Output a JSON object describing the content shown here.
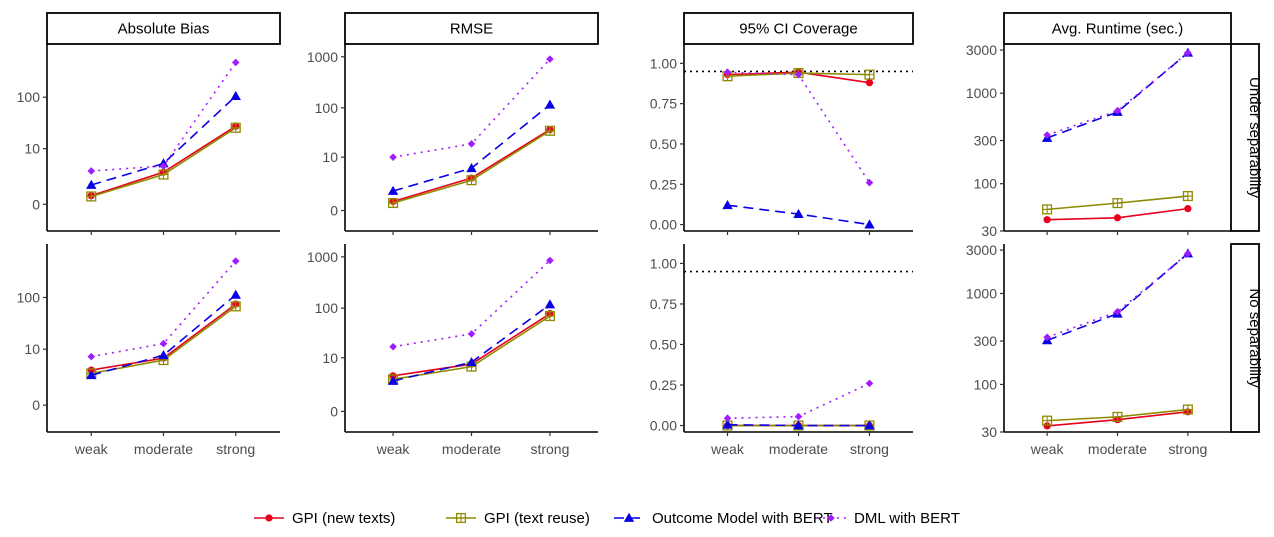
{
  "chart_data": {
    "type": "line",
    "categories": [
      "weak",
      "moderate",
      "strong"
    ],
    "series_names": [
      "GPI (new texts)",
      "GPI (text reuse)",
      "Outcome Model with BERT",
      "DML with BERT"
    ],
    "colors": {
      "GPI (new texts)": "#e8001c",
      "GPI (text reuse)": "#8f8a00",
      "Outcome Model with BERT": "#0a00e6",
      "DML with BERT": "#a11dff"
    },
    "columns": [
      "Absolute Bias",
      "RMSE",
      "95% CI Coverage",
      "Avg. Runtime (sec.)"
    ],
    "rows": [
      "Under separability",
      "No separability"
    ],
    "legend_position": "bottom",
    "coverage_reference_line": 0.95,
    "panels": [
      {
        "row": "Under separability",
        "column": "Absolute Bias",
        "scale": "pseudo-log",
        "yticks": [
          0,
          10,
          100
        ],
        "ytick_labels": [
          "0",
          "10",
          "100"
        ],
        "series": [
          {
            "name": "GPI (new texts)",
            "values": [
              0.45,
              3.0,
              28
            ]
          },
          {
            "name": "GPI (text reuse)",
            "values": [
              0.4,
              2.6,
              26
            ]
          },
          {
            "name": "Outcome Model with BERT",
            "values": [
              1.3,
              4.8,
              105
            ]
          },
          {
            "name": "DML with BERT",
            "values": [
              3.2,
              4.2,
              450
            ]
          }
        ]
      },
      {
        "row": "Under separability",
        "column": "RMSE",
        "scale": "pseudo-log",
        "yticks": [
          0,
          10,
          100,
          1000
        ],
        "ytick_labels": [
          "0",
          "10",
          "100",
          "1000"
        ],
        "series": [
          {
            "name": "GPI (new texts)",
            "values": [
              0.5,
              3.3,
              37
            ]
          },
          {
            "name": "GPI (text reuse)",
            "values": [
              0.4,
              2.9,
              35
            ]
          },
          {
            "name": "Outcome Model with BERT",
            "values": [
              1.4,
              5.7,
              115
            ]
          },
          {
            "name": "DML with BERT",
            "values": [
              10,
              19,
              900
            ]
          }
        ]
      },
      {
        "row": "Under separability",
        "column": "95% CI Coverage",
        "scale": "linear",
        "yticks": [
          0,
          0.25,
          0.5,
          0.75,
          1.0
        ],
        "ytick_labels": [
          "0.00",
          "0.25",
          "0.50",
          "0.75",
          "1.00"
        ],
        "series": [
          {
            "name": "GPI (new texts)",
            "values": [
              0.93,
              0.945,
              0.88
            ]
          },
          {
            "name": "GPI (text reuse)",
            "values": [
              0.92,
              0.94,
              0.93
            ]
          },
          {
            "name": "Outcome Model with BERT",
            "values": [
              0.12,
              0.065,
              0.0
            ]
          },
          {
            "name": "DML with BERT",
            "values": [
              0.945,
              0.93,
              0.26
            ]
          }
        ]
      },
      {
        "row": "Under separability",
        "column": "Avg. Runtime (sec.)",
        "scale": "log",
        "yticks": [
          30,
          100,
          300,
          1000,
          3000
        ],
        "ytick_labels": [
          "30",
          "100",
          "300",
          "1000",
          "3000"
        ],
        "series": [
          {
            "name": "GPI (new texts)",
            "values": [
              40,
              42,
              53
            ]
          },
          {
            "name": "GPI (text reuse)",
            "values": [
              52,
              61,
              73
            ]
          },
          {
            "name": "Outcome Model with BERT",
            "values": [
              320,
              620,
              2800
            ]
          },
          {
            "name": "DML with BERT",
            "values": [
              345,
              640,
              2800
            ]
          }
        ]
      },
      {
        "row": "No separability",
        "column": "Absolute Bias",
        "scale": "pseudo-log",
        "yticks": [
          0,
          10,
          100
        ],
        "ytick_labels": [
          "0",
          "10",
          "100"
        ],
        "series": [
          {
            "name": "GPI (new texts)",
            "values": [
              3.5,
              6.5,
              75
            ]
          },
          {
            "name": "GPI (text reuse)",
            "values": [
              2.9,
              5.9,
              68
            ]
          },
          {
            "name": "Outcome Model with BERT",
            "values": [
              2.6,
              7.5,
              112
            ]
          },
          {
            "name": "DML with BERT",
            "values": [
              7.0,
              13,
              480
            ]
          }
        ]
      },
      {
        "row": "No separability",
        "column": "RMSE",
        "scale": "pseudo-log",
        "yticks": [
          0,
          10,
          100,
          1000
        ],
        "ytick_labels": [
          "0",
          "10",
          "100",
          "1000"
        ],
        "series": [
          {
            "name": "GPI (new texts)",
            "values": [
              3.9,
              7.3,
              78
            ]
          },
          {
            "name": "GPI (text reuse)",
            "values": [
              3.2,
              6.4,
              70
            ]
          },
          {
            "name": "Outcome Model with BERT",
            "values": [
              2.9,
              8.0,
              118
            ]
          },
          {
            "name": "DML with BERT",
            "values": [
              17,
              31,
              850
            ]
          }
        ]
      },
      {
        "row": "No separability",
        "column": "95% CI Coverage",
        "scale": "linear",
        "yticks": [
          0,
          0.25,
          0.5,
          0.75,
          1.0
        ],
        "ytick_labels": [
          "0.00",
          "0.25",
          "0.50",
          "0.75",
          "1.00"
        ],
        "series": [
          {
            "name": "GPI (new texts)",
            "values": [
              0.0,
              0.0,
              0.0
            ]
          },
          {
            "name": "GPI (text reuse)",
            "values": [
              0.0,
              0.0,
              0.0
            ]
          },
          {
            "name": "Outcome Model with BERT",
            "values": [
              0.005,
              0.0,
              0.0
            ]
          },
          {
            "name": "DML with BERT",
            "values": [
              0.045,
              0.055,
              0.26
            ]
          }
        ]
      },
      {
        "row": "No separability",
        "column": "Avg. Runtime (sec.)",
        "scale": "log",
        "yticks": [
          30,
          100,
          300,
          1000,
          3000
        ],
        "ytick_labels": [
          "30",
          "100",
          "300",
          "1000",
          "3000"
        ],
        "series": [
          {
            "name": "GPI (new texts)",
            "values": [
              35,
              41,
              50
            ]
          },
          {
            "name": "GPI (text reuse)",
            "values": [
              40,
              44,
              53
            ]
          },
          {
            "name": "Outcome Model with BERT",
            "values": [
              305,
              600,
              2750
            ]
          },
          {
            "name": "DML with BERT",
            "values": [
              330,
              630,
              2750
            ]
          }
        ]
      }
    ]
  }
}
